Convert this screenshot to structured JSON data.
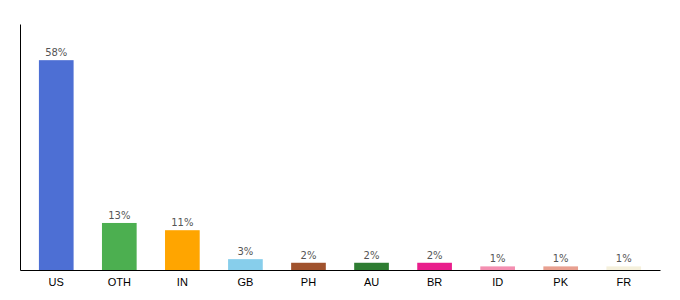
{
  "chart_data": {
    "type": "bar",
    "categories": [
      "US",
      "OTH",
      "IN",
      "GB",
      "PH",
      "AU",
      "BR",
      "ID",
      "PK",
      "FR"
    ],
    "values": [
      58,
      13,
      11,
      3,
      2,
      2,
      2,
      1,
      1,
      1
    ],
    "value_labels": [
      "58%",
      "13%",
      "11%",
      "3%",
      "2%",
      "2%",
      "2%",
      "1%",
      "1%",
      "1%"
    ],
    "colors": [
      "#4d6fd4",
      "#4caf50",
      "#ffa500",
      "#87ceeb",
      "#a0522d",
      "#2e7d32",
      "#e91e8c",
      "#f48fb1",
      "#e8a090",
      "#f5f0dc"
    ],
    "ylim": [
      0,
      68
    ],
    "grid": false,
    "data_labels": true,
    "tick_labels": "x"
  }
}
